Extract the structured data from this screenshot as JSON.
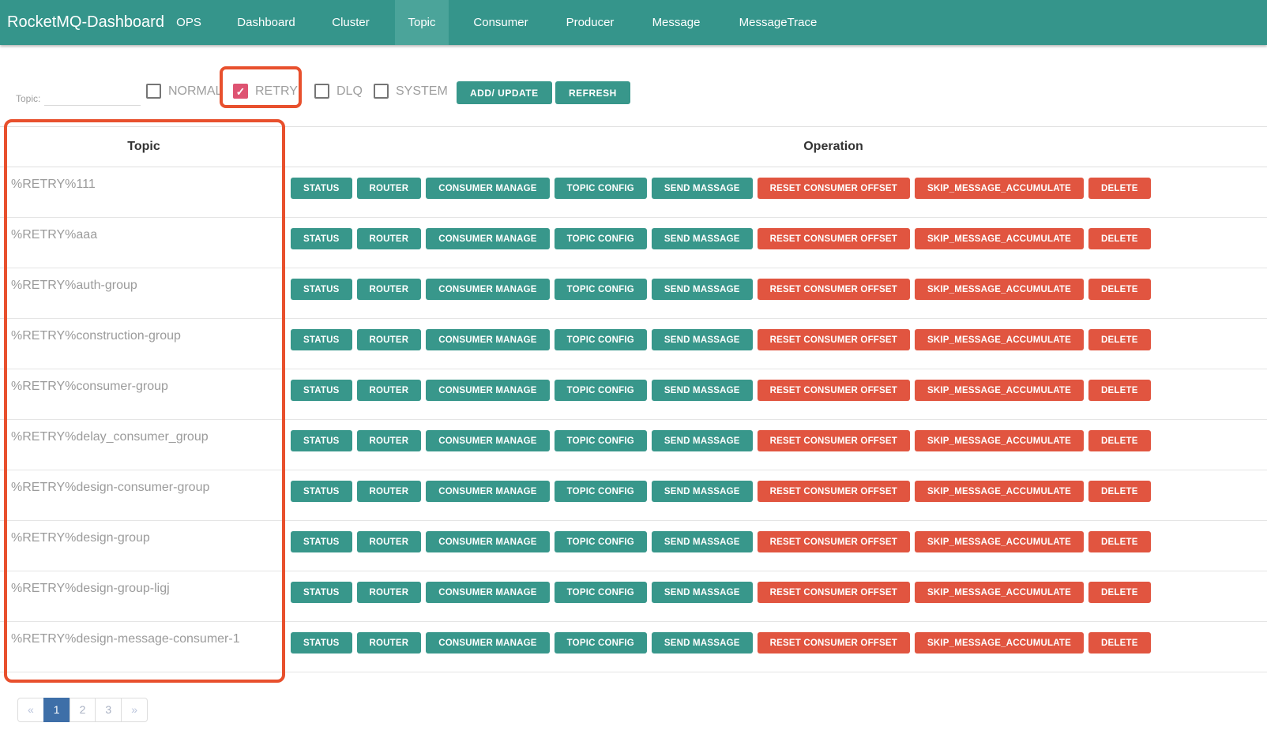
{
  "navbar": {
    "brand": "RocketMQ-Dashboard",
    "items": [
      {
        "label": "OPS",
        "active": false
      },
      {
        "label": "Dashboard",
        "active": false
      },
      {
        "label": "Cluster",
        "active": false
      },
      {
        "label": "Topic",
        "active": true
      },
      {
        "label": "Consumer",
        "active": false
      },
      {
        "label": "Producer",
        "active": false
      },
      {
        "label": "Message",
        "active": false
      },
      {
        "label": "MessageTrace",
        "active": false
      }
    ]
  },
  "filter": {
    "topic_label": "Topic:",
    "topic_value": "",
    "checkboxes": [
      {
        "label": "NORMAL",
        "checked": false
      },
      {
        "label": "RETRY",
        "checked": true,
        "annotated": true
      },
      {
        "label": "DLQ",
        "checked": false
      },
      {
        "label": "SYSTEM",
        "checked": false
      }
    ],
    "add_update_label": "ADD/ UPDATE",
    "refresh_label": "REFRESH"
  },
  "table": {
    "columns": [
      "Topic",
      "Operation"
    ],
    "row_buttons": [
      {
        "label": "STATUS",
        "style": "teal",
        "name": "status-button"
      },
      {
        "label": "ROUTER",
        "style": "teal",
        "name": "router-button"
      },
      {
        "label": "CONSUMER MANAGE",
        "style": "teal",
        "name": "consumer-manage-button"
      },
      {
        "label": "TOPIC CONFIG",
        "style": "teal",
        "name": "topic-config-button"
      },
      {
        "label": "SEND MASSAGE",
        "style": "teal",
        "name": "send-massage-button"
      },
      {
        "label": "RESET CONSUMER OFFSET",
        "style": "danger",
        "name": "reset-consumer-offset-button"
      },
      {
        "label": "SKIP_MESSAGE_ACCUMULATE",
        "style": "danger",
        "name": "skip-message-accumulate-button"
      },
      {
        "label": "DELETE",
        "style": "danger",
        "name": "delete-button"
      }
    ],
    "rows": [
      "%RETRY%111",
      "%RETRY%aaa",
      "%RETRY%auth-group",
      "%RETRY%construction-group",
      "%RETRY%consumer-group",
      "%RETRY%delay_consumer_group",
      "%RETRY%design-consumer-group",
      "%RETRY%design-group",
      "%RETRY%design-group-ligj",
      "%RETRY%design-message-consumer-1"
    ]
  },
  "pagination": {
    "items": [
      {
        "label": "«",
        "name": "pagination-prev",
        "active": false
      },
      {
        "label": "1",
        "name": "pagination-page-1",
        "active": true
      },
      {
        "label": "2",
        "name": "pagination-page-2",
        "active": false
      },
      {
        "label": "3",
        "name": "pagination-page-3",
        "active": false
      },
      {
        "label": "»",
        "name": "pagination-next",
        "active": false
      }
    ]
  },
  "colors": {
    "navbar_teal": "#35958B",
    "navbar_active_teal": "#4BA49A",
    "accent_teal": "#38978B",
    "danger_red": "#E15540",
    "annotation_orange": "#E8502D",
    "checkbox_pink": "#DE5372",
    "pagination_active_blue": "#3E6FA8"
  }
}
